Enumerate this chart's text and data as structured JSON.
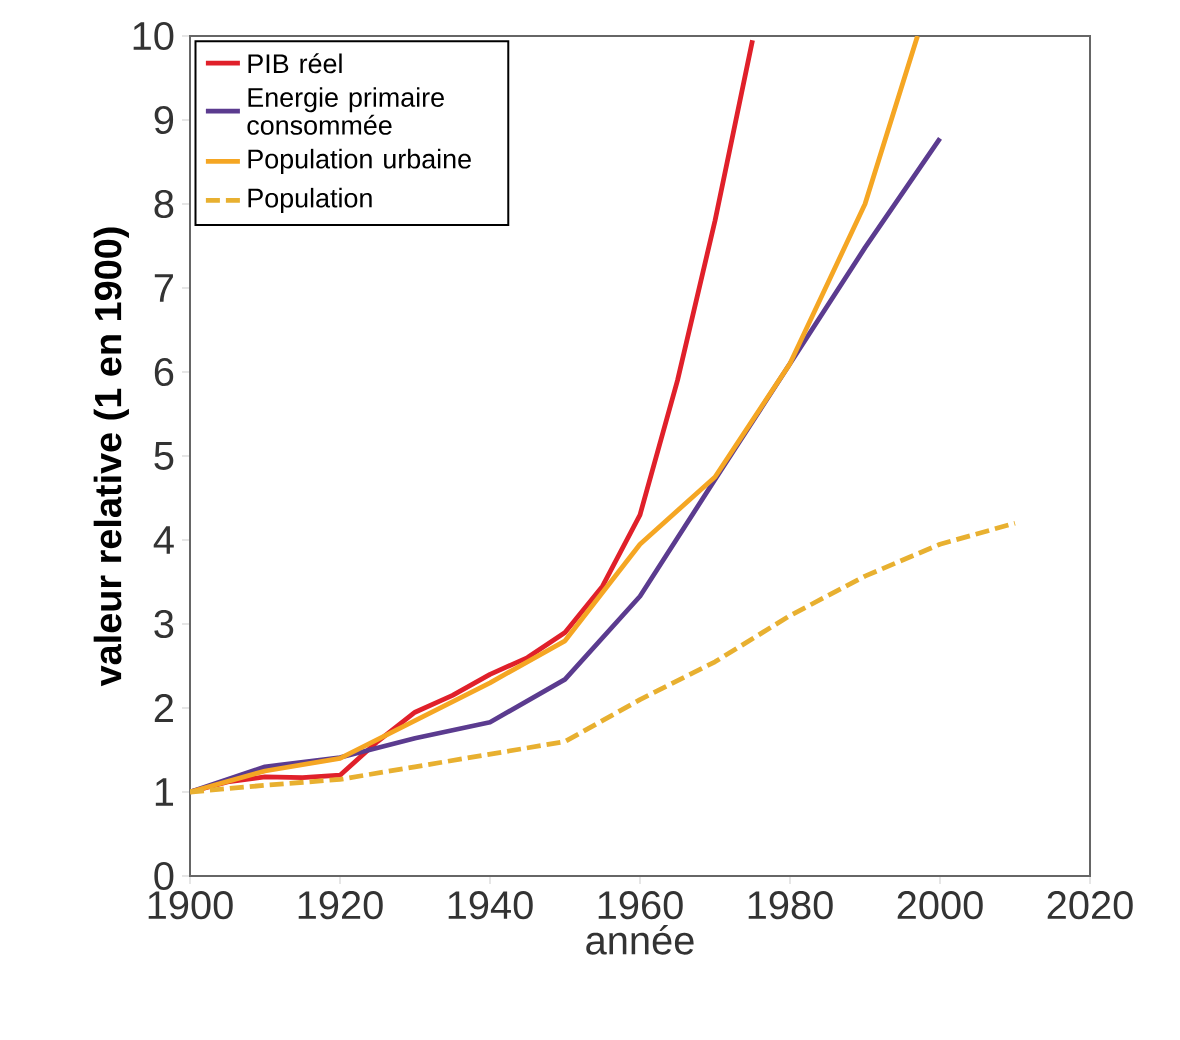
{
  "chart_data": {
    "type": "line",
    "xlabel": "année",
    "ylabel": "valeur relative (1 en 1900)",
    "xlim": [
      1900,
      2020
    ],
    "ylim": [
      0,
      10
    ],
    "xticks": [
      1900,
      1920,
      1940,
      1960,
      1980,
      2000,
      2020
    ],
    "yticks": [
      0,
      1,
      2,
      3,
      4,
      5,
      6,
      7,
      8,
      9,
      10
    ],
    "grid": false,
    "legend": "top left",
    "marker": "none",
    "series": [
      {
        "name": "PIB réel",
        "color": "#e0202a",
        "line_style": "solid",
        "x": [
          1900,
          1905,
          1910,
          1915,
          1920,
          1925,
          1930,
          1935,
          1940,
          1945,
          1950,
          1955,
          1960,
          1965,
          1970,
          1975
        ],
        "values": [
          1,
          1.12,
          1.18,
          1.17,
          1.2,
          1.6,
          1.95,
          2.15,
          2.4,
          2.6,
          2.9,
          3.45,
          4.3,
          5.9,
          7.8,
          9.95
        ]
      },
      {
        "name": "Energie primaire consommée",
        "color": "#5b3b8f",
        "line_style": "solid",
        "x": [
          1900,
          1910,
          1920,
          1930,
          1940,
          1950,
          1960,
          1970,
          1980,
          1990,
          2000
        ],
        "values": [
          1,
          1.3,
          1.41,
          1.64,
          1.83,
          2.34,
          3.33,
          4.72,
          6.1,
          7.48,
          8.78
        ]
      },
      {
        "name": "Population urbaine",
        "color": "#f5a623",
        "line_style": "solid",
        "x": [
          1900,
          1910,
          1920,
          1930,
          1940,
          1950,
          1960,
          1970,
          1980,
          1990,
          1997
        ],
        "values": [
          1,
          1.25,
          1.4,
          1.85,
          2.3,
          2.8,
          3.95,
          4.75,
          6.1,
          8.0,
          10
        ]
      },
      {
        "name": "Population",
        "color": "#e8b030",
        "line_style": "dashed",
        "x": [
          1900,
          1910,
          1920,
          1930,
          1940,
          1950,
          1960,
          1970,
          1980,
          1990,
          2000,
          2010
        ],
        "values": [
          1,
          1.08,
          1.15,
          1.3,
          1.45,
          1.6,
          2.1,
          2.55,
          3.1,
          3.57,
          3.95,
          4.2
        ]
      }
    ]
  }
}
